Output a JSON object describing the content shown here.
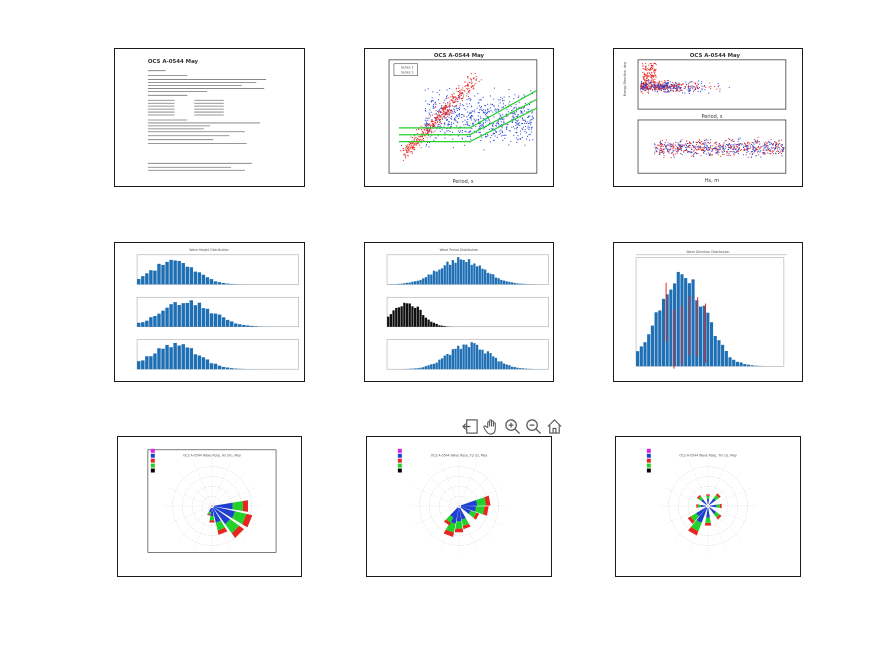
{
  "thumbnails": {
    "report": {
      "title": "OCS A-0544 May"
    },
    "scatter1": {
      "title": "OCS A-0544 May",
      "xlabel": "Period, s",
      "legend": [
        "Series 1",
        "Series 2"
      ]
    },
    "scatter2": {
      "title": "OCS A-0544 May",
      "xlabel_top": "Period, s",
      "xlabel_bottom": "Hs, m",
      "ylabel": "Energy Direction, deg"
    },
    "hist1": {
      "title": "Wave Height Distribution"
    },
    "hist2": {
      "title": "Wave Period Distribution"
    },
    "hist3": {
      "title": "Wave Direction Distribution"
    },
    "rose1": {
      "title": "OCS A-0544 Wave Rose, Hs (m), May"
    },
    "rose2": {
      "title": "OCS A-0544 Wave Rose, Tp (s), May"
    },
    "rose3": {
      "title": "OCS A-0544 Wave Rose, Tm (s), May"
    }
  },
  "toolbar": {
    "tools": [
      "back-icon",
      "pan-icon",
      "zoom-in-icon",
      "zoom-out-icon",
      "home-icon"
    ]
  },
  "colors": {
    "red": "#e8251e",
    "blue": "#1f3fd1",
    "green": "#22d12a",
    "bar": "#1f6fb4",
    "magenta": "#e020e0"
  }
}
